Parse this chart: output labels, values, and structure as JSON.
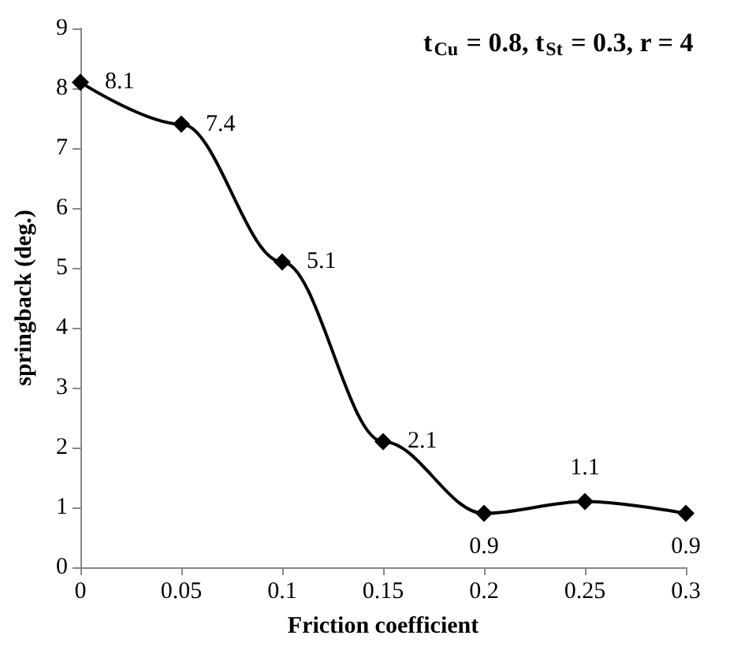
{
  "chart_data": {
    "type": "line",
    "xlabel": "Friction coefficient",
    "ylabel": "springback (deg.)",
    "annotations": [
      "t$_{Cu}$ = 0.8, t$_{St}$ = 0.3, r = 4"
    ],
    "x": [
      0,
      0.05,
      0.1,
      0.15,
      0.2,
      0.25,
      0.3
    ],
    "series": [
      {
        "color": "#000000",
        "values": [
          8.1,
          7.4,
          5.1,
          2.1,
          0.9,
          1.1,
          0.9
        ]
      }
    ],
    "xlim": [
      0,
      0.3
    ],
    "xticks": [
      0,
      0.05,
      0.1,
      0.15,
      0.2,
      0.25,
      0.3
    ],
    "ylim": [
      0,
      9
    ],
    "yticks": [
      0,
      1,
      2,
      3,
      4,
      5,
      6,
      7,
      8,
      9
    ],
    "grid": false,
    "marker": "diamond",
    "line_style": "solid",
    "data_labels": true
  }
}
